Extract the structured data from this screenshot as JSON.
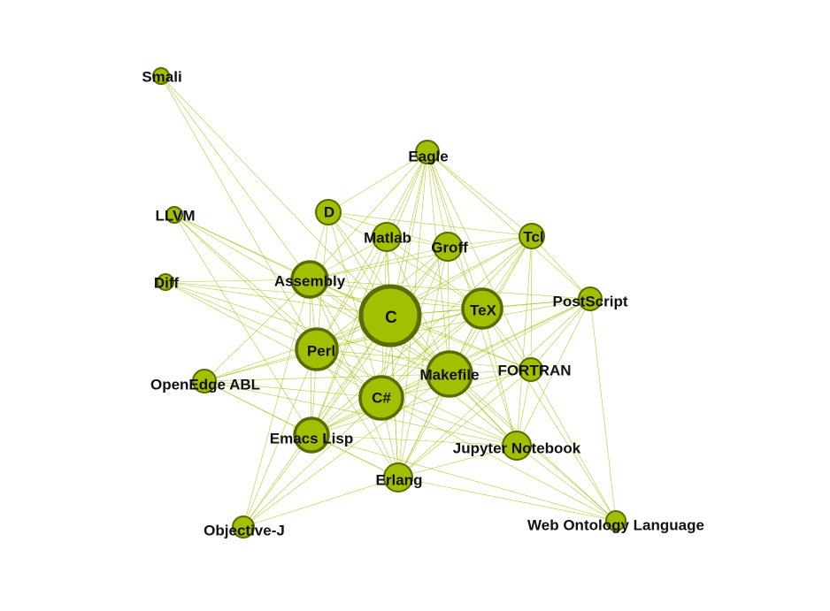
{
  "colors": {
    "node_fill": "#a3c000",
    "node_stroke": "#5a6b00",
    "edge": "#a3c000",
    "label": "#111111"
  },
  "nodes": [
    {
      "id": "smali",
      "label": "Smali"
    },
    {
      "id": "eagle",
      "label": "Eagle"
    },
    {
      "id": "llvm",
      "label": "LLVM"
    },
    {
      "id": "d",
      "label": "D"
    },
    {
      "id": "matlab",
      "label": "Matlab"
    },
    {
      "id": "groff",
      "label": "Groff"
    },
    {
      "id": "tcl",
      "label": "Tcl"
    },
    {
      "id": "diff",
      "label": "Diff"
    },
    {
      "id": "assembly",
      "label": "Assembly"
    },
    {
      "id": "postscript",
      "label": "PostScript"
    },
    {
      "id": "c",
      "label": "C"
    },
    {
      "id": "tex",
      "label": "TeX"
    },
    {
      "id": "perl",
      "label": "Perl"
    },
    {
      "id": "fortran",
      "label": "FORTRAN"
    },
    {
      "id": "openedge",
      "label": "OpenEdge ABL"
    },
    {
      "id": "makefile",
      "label": "Makefile"
    },
    {
      "id": "csharp",
      "label": "C#"
    },
    {
      "id": "emacs",
      "label": "Emacs Lisp"
    },
    {
      "id": "jupyter",
      "label": "Jupyter Notebook"
    },
    {
      "id": "erlang",
      "label": "Erlang"
    },
    {
      "id": "objj",
      "label": "Objective-J"
    },
    {
      "id": "owl",
      "label": "Web Ontology Language"
    }
  ],
  "edges": [
    [
      "smali",
      "assembly"
    ],
    [
      "smali",
      "c"
    ],
    [
      "smali",
      "perl"
    ],
    [
      "eagle",
      "d"
    ],
    [
      "eagle",
      "matlab"
    ],
    [
      "eagle",
      "groff"
    ],
    [
      "eagle",
      "tcl"
    ],
    [
      "eagle",
      "assembly"
    ],
    [
      "eagle",
      "c"
    ],
    [
      "eagle",
      "tex"
    ],
    [
      "eagle",
      "perl"
    ],
    [
      "eagle",
      "makefile"
    ],
    [
      "eagle",
      "csharp"
    ],
    [
      "eagle",
      "emacs"
    ],
    [
      "eagle",
      "postscript"
    ],
    [
      "eagle",
      "fortran"
    ],
    [
      "eagle",
      "jupyter"
    ],
    [
      "eagle",
      "erlang"
    ],
    [
      "llvm",
      "assembly"
    ],
    [
      "llvm",
      "c"
    ],
    [
      "llvm",
      "perl"
    ],
    [
      "llvm",
      "makefile"
    ],
    [
      "llvm",
      "csharp"
    ],
    [
      "llvm",
      "emacs"
    ],
    [
      "d",
      "c"
    ],
    [
      "d",
      "tex"
    ],
    [
      "d",
      "perl"
    ],
    [
      "d",
      "makefile"
    ],
    [
      "d",
      "csharp"
    ],
    [
      "d",
      "assembly"
    ],
    [
      "d",
      "groff"
    ],
    [
      "d",
      "tcl"
    ],
    [
      "matlab",
      "c"
    ],
    [
      "matlab",
      "tex"
    ],
    [
      "matlab",
      "perl"
    ],
    [
      "matlab",
      "makefile"
    ],
    [
      "matlab",
      "csharp"
    ],
    [
      "matlab",
      "assembly"
    ],
    [
      "matlab",
      "emacs"
    ],
    [
      "matlab",
      "erlang"
    ],
    [
      "matlab",
      "groff"
    ],
    [
      "groff",
      "c"
    ],
    [
      "groff",
      "tex"
    ],
    [
      "groff",
      "perl"
    ],
    [
      "groff",
      "makefile"
    ],
    [
      "groff",
      "csharp"
    ],
    [
      "groff",
      "emacs"
    ],
    [
      "groff",
      "assembly"
    ],
    [
      "groff",
      "erlang"
    ],
    [
      "groff",
      "tcl"
    ],
    [
      "tcl",
      "c"
    ],
    [
      "tcl",
      "tex"
    ],
    [
      "tcl",
      "makefile"
    ],
    [
      "tcl",
      "perl"
    ],
    [
      "tcl",
      "csharp"
    ],
    [
      "tcl",
      "emacs"
    ],
    [
      "tcl",
      "jupyter"
    ],
    [
      "tcl",
      "fortran"
    ],
    [
      "tcl",
      "postscript"
    ],
    [
      "tcl",
      "assembly"
    ],
    [
      "tcl",
      "erlang"
    ],
    [
      "diff",
      "assembly"
    ],
    [
      "diff",
      "c"
    ],
    [
      "diff",
      "perl"
    ],
    [
      "diff",
      "makefile"
    ],
    [
      "diff",
      "csharp"
    ],
    [
      "diff",
      "tex"
    ],
    [
      "assembly",
      "c"
    ],
    [
      "assembly",
      "perl"
    ],
    [
      "assembly",
      "csharp"
    ],
    [
      "assembly",
      "tex"
    ],
    [
      "assembly",
      "makefile"
    ],
    [
      "assembly",
      "emacs"
    ],
    [
      "assembly",
      "erlang"
    ],
    [
      "assembly",
      "openedge"
    ],
    [
      "assembly",
      "objj"
    ],
    [
      "assembly",
      "jupyter"
    ],
    [
      "assembly",
      "fortran"
    ],
    [
      "assembly",
      "postscript"
    ],
    [
      "postscript",
      "c"
    ],
    [
      "postscript",
      "tex"
    ],
    [
      "postscript",
      "makefile"
    ],
    [
      "postscript",
      "csharp"
    ],
    [
      "postscript",
      "perl"
    ],
    [
      "postscript",
      "fortran"
    ],
    [
      "postscript",
      "jupyter"
    ],
    [
      "postscript",
      "owl"
    ],
    [
      "postscript",
      "emacs"
    ],
    [
      "postscript",
      "erlang"
    ],
    [
      "c",
      "tex"
    ],
    [
      "c",
      "perl"
    ],
    [
      "c",
      "makefile"
    ],
    [
      "c",
      "csharp"
    ],
    [
      "c",
      "emacs"
    ],
    [
      "c",
      "erlang"
    ],
    [
      "c",
      "jupyter"
    ],
    [
      "c",
      "fortran"
    ],
    [
      "c",
      "openedge"
    ],
    [
      "c",
      "objj"
    ],
    [
      "c",
      "owl"
    ],
    [
      "tex",
      "perl"
    ],
    [
      "tex",
      "makefile"
    ],
    [
      "tex",
      "csharp"
    ],
    [
      "tex",
      "emacs"
    ],
    [
      "tex",
      "jupyter"
    ],
    [
      "tex",
      "fortran"
    ],
    [
      "tex",
      "erlang"
    ],
    [
      "tex",
      "owl"
    ],
    [
      "tex",
      "openedge"
    ],
    [
      "perl",
      "makefile"
    ],
    [
      "perl",
      "csharp"
    ],
    [
      "perl",
      "emacs"
    ],
    [
      "perl",
      "erlang"
    ],
    [
      "perl",
      "openedge"
    ],
    [
      "perl",
      "objj"
    ],
    [
      "perl",
      "jupyter"
    ],
    [
      "perl",
      "fortran"
    ],
    [
      "fortran",
      "makefile"
    ],
    [
      "fortran",
      "csharp"
    ],
    [
      "fortran",
      "jupyter"
    ],
    [
      "fortran",
      "owl"
    ],
    [
      "fortran",
      "emacs"
    ],
    [
      "fortran",
      "erlang"
    ],
    [
      "openedge",
      "emacs"
    ],
    [
      "openedge",
      "csharp"
    ],
    [
      "openedge",
      "makefile"
    ],
    [
      "openedge",
      "erlang"
    ],
    [
      "openedge",
      "jupyter"
    ],
    [
      "makefile",
      "csharp"
    ],
    [
      "makefile",
      "emacs"
    ],
    [
      "makefile",
      "erlang"
    ],
    [
      "makefile",
      "jupyter"
    ],
    [
      "makefile",
      "owl"
    ],
    [
      "makefile",
      "objj"
    ],
    [
      "csharp",
      "emacs"
    ],
    [
      "csharp",
      "erlang"
    ],
    [
      "csharp",
      "jupyter"
    ],
    [
      "csharp",
      "owl"
    ],
    [
      "csharp",
      "objj"
    ],
    [
      "emacs",
      "erlang"
    ],
    [
      "emacs",
      "jupyter"
    ],
    [
      "emacs",
      "objj"
    ],
    [
      "emacs",
      "owl"
    ],
    [
      "jupyter",
      "erlang"
    ],
    [
      "jupyter",
      "owl"
    ],
    [
      "erlang",
      "objj"
    ],
    [
      "erlang",
      "owl"
    ]
  ]
}
